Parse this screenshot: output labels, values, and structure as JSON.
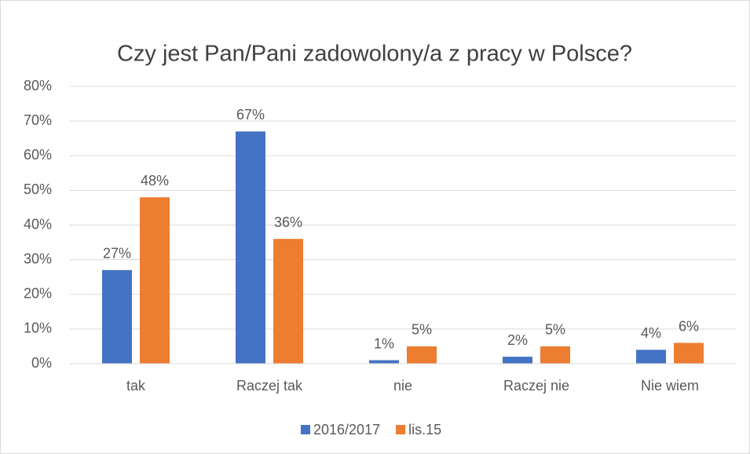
{
  "chart_data": {
    "type": "bar",
    "title": "Czy jest Pan/Pani zadowolony/a z pracy w Polsce?",
    "categories": [
      "tak",
      "Raczej tak",
      "nie",
      "Raczej nie",
      "Nie wiem"
    ],
    "series": [
      {
        "name": "2016/2017",
        "color": "#4472c4",
        "values": [
          27,
          67,
          1,
          2,
          4
        ],
        "value_labels": [
          "27%",
          "67%",
          "1%",
          "2%",
          "4%"
        ]
      },
      {
        "name": "lis.15",
        "color": "#ed7d31",
        "values": [
          48,
          36,
          5,
          5,
          6
        ],
        "value_labels": [
          "48%",
          "36%",
          "5%",
          "5%",
          "6%"
        ]
      }
    ],
    "ylim": [
      0,
      80
    ],
    "yticks": [
      {
        "value": 0,
        "label": "0%"
      },
      {
        "value": 10,
        "label": "10%"
      },
      {
        "value": 20,
        "label": "20%"
      },
      {
        "value": 30,
        "label": "30%"
      },
      {
        "value": 40,
        "label": "40%"
      },
      {
        "value": 50,
        "label": "50%"
      },
      {
        "value": 60,
        "label": "60%"
      },
      {
        "value": 70,
        "label": "70%"
      },
      {
        "value": 80,
        "label": "80%"
      }
    ],
    "grid": true,
    "legend": "bottom"
  }
}
